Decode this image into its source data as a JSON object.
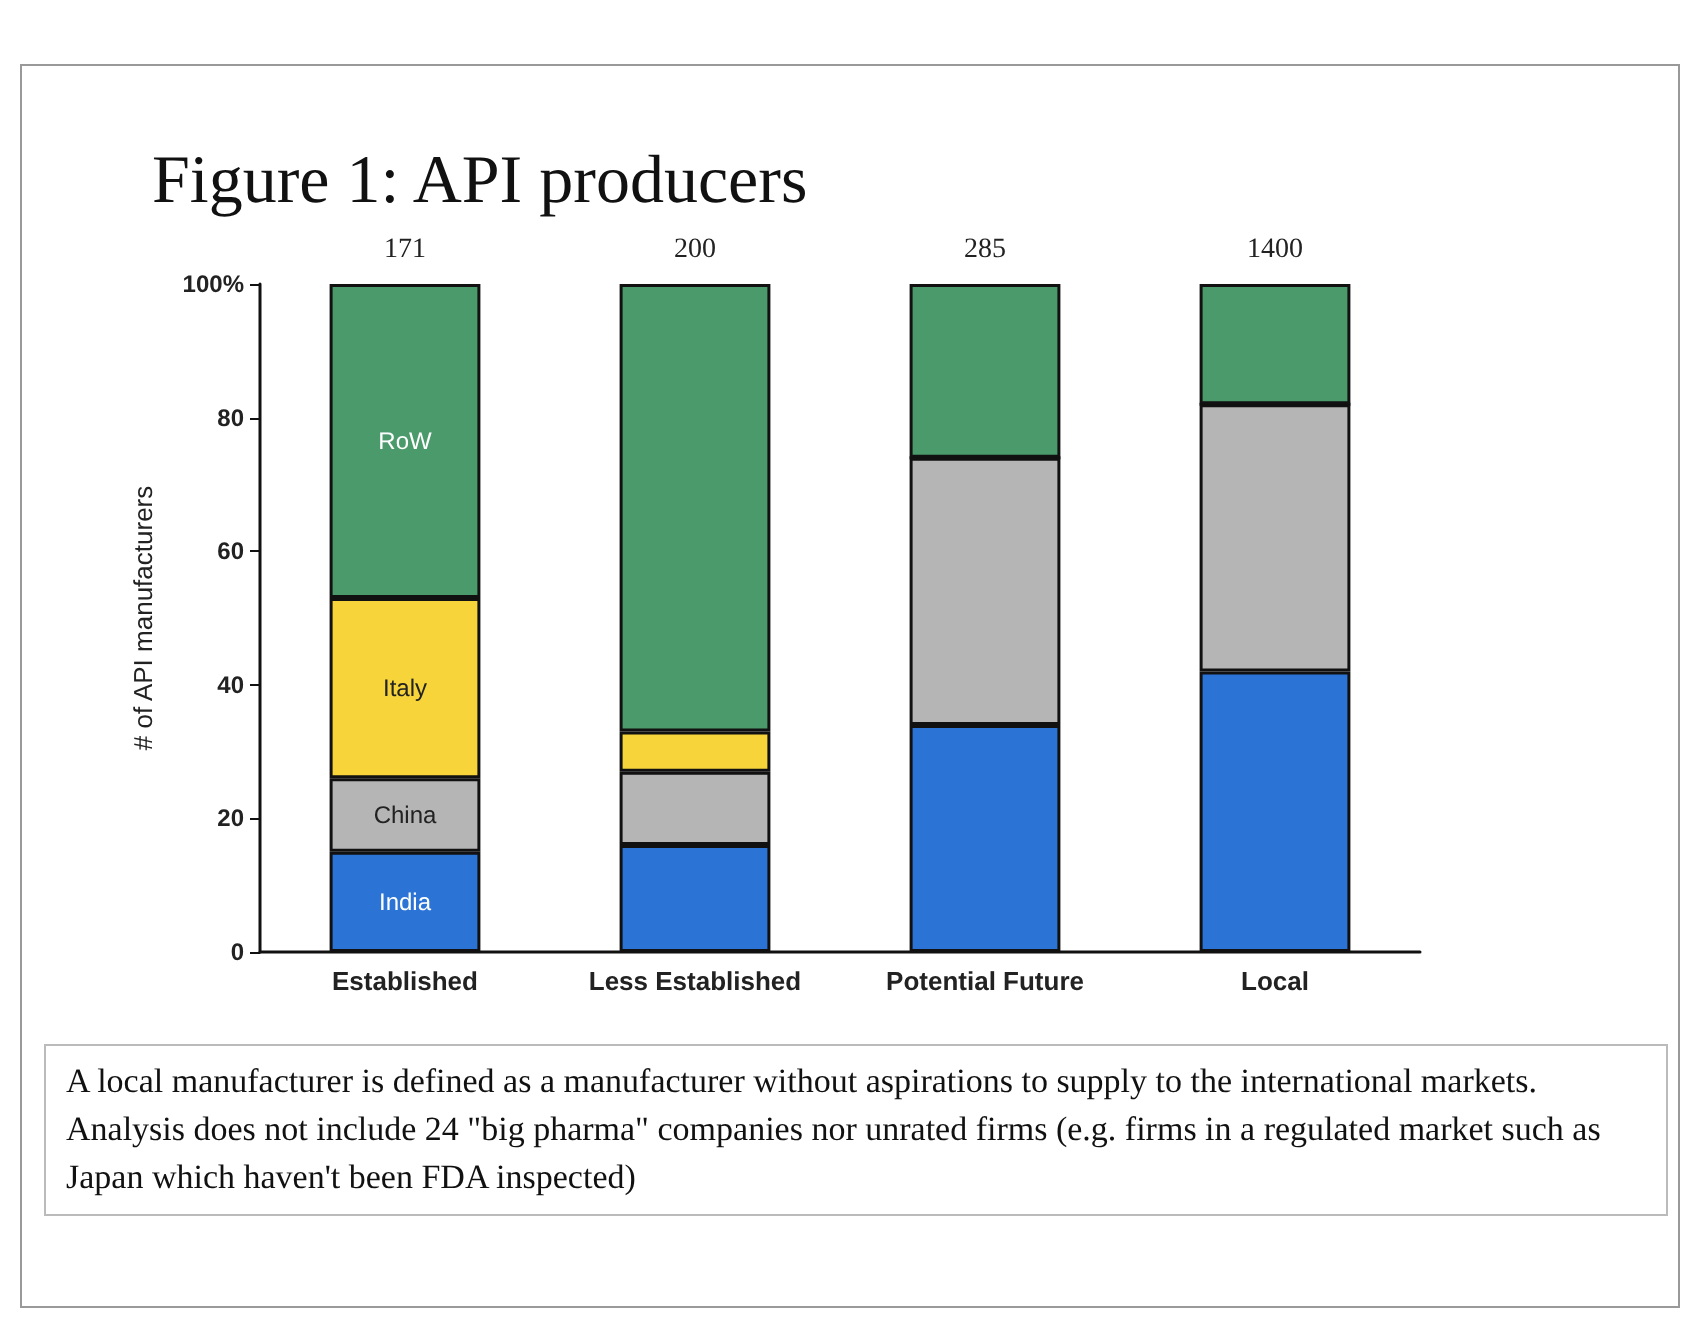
{
  "chart_data": {
    "type": "bar",
    "title": "Figure 1:  API producers",
    "ylabel": "# of API manufacturers",
    "categories": [
      "Established",
      "Less Established",
      "Potential Future",
      "Local"
    ],
    "stacked": true,
    "series": [
      {
        "name": "India",
        "color": "#2b74d6",
        "values": [
          15,
          16,
          34,
          42
        ]
      },
      {
        "name": "China",
        "color": "#b5b5b5",
        "values": [
          11,
          11,
          40,
          40
        ]
      },
      {
        "name": "Italy",
        "color": "#f6d43a",
        "values": [
          27,
          6,
          0,
          0
        ]
      },
      {
        "name": "RoW",
        "color": "#4b9a6c",
        "values": [
          47,
          67,
          26,
          18
        ]
      }
    ],
    "ylim": [
      0,
      100
    ],
    "yticks": [
      0,
      20,
      40,
      60,
      80,
      {
        "value": 100,
        "label": "100%"
      }
    ],
    "grid": false,
    "legend": false,
    "annotations": [
      {
        "text": "171",
        "x": "Established",
        "y": 100
      },
      {
        "text": "200",
        "x": "Less Established",
        "y": 100
      },
      {
        "text": "285",
        "x": "Potential Future",
        "y": 100
      },
      {
        "text": "1400",
        "x": "Local",
        "y": 100
      },
      "A local manufacturer is defined as a manufacturer without aspirations to supply to the international markets.",
      "Analysis does not include 24 \"big pharma\" companies nor unrated firms (e.g. firms in a regulated market such as Japan which haven't been FDA inspected)"
    ]
  }
}
